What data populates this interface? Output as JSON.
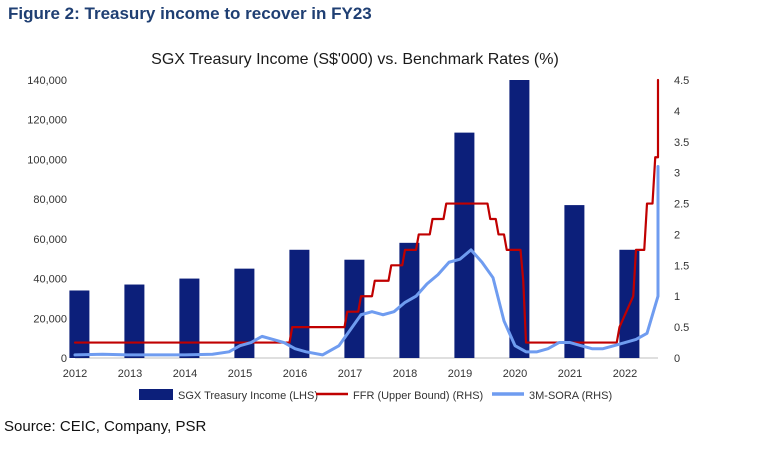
{
  "figure_title": "Figure 2: Treasury income to recover in FY23",
  "source_note": "Source: CEIC, Company, PSR",
  "colors": {
    "bars": "#0c1f7a",
    "ffr": "#c00000",
    "sora": "#6f9cf0",
    "title": "#1f3f73"
  },
  "chart_data": {
    "type": "bar+line",
    "title": "SGX Treasury Income (S$'000) vs. Benchmark Rates (%)",
    "x_tick_labels": [
      "2012",
      "2013",
      "2014",
      "2015",
      "2016",
      "2017",
      "2018",
      "2019",
      "2020",
      "2021",
      "2022"
    ],
    "x_range": [
      2012,
      2022.6
    ],
    "y_left": {
      "range": [
        0,
        140000
      ],
      "ticks": [
        "0",
        "20,000",
        "40,000",
        "60,000",
        "80,000",
        "100,000",
        "120,000",
        "140,000"
      ]
    },
    "y_right": {
      "range": [
        0,
        4.5
      ],
      "ticks": [
        "0",
        "0.5",
        "1",
        "1.5",
        "2",
        "2.5",
        "3",
        "3.5",
        "4",
        "4.5"
      ]
    },
    "bar_series": {
      "name": "SGX Treasury Income (LHS)",
      "axis": "left",
      "x": [
        2012,
        2013,
        2014,
        2015,
        2016,
        2017,
        2018,
        2019,
        2020,
        2021,
        2022
      ],
      "values": [
        34000,
        37000,
        40000,
        45000,
        54500,
        49500,
        58000,
        113500,
        140000,
        77000,
        54500
      ]
    },
    "line_series": [
      {
        "name": "FFR (Upper Bound) (RHS)",
        "axis": "right",
        "color": "#c00000",
        "x": [
          2012,
          2015.9,
          2015.95,
          2016.9,
          2016.95,
          2017.15,
          2017.2,
          2017.4,
          2017.45,
          2017.7,
          2017.75,
          2017.95,
          2018.0,
          2018.2,
          2018.25,
          2018.45,
          2018.5,
          2018.7,
          2018.75,
          2018.95,
          2019.0,
          2019.5,
          2019.55,
          2019.65,
          2019.7,
          2019.8,
          2019.85,
          2020.1,
          2020.15,
          2020.2,
          2020.25,
          2021.85,
          2021.9,
          2022.15,
          2022.2,
          2022.35,
          2022.4,
          2022.5,
          2022.55,
          2022.65,
          2022.75,
          2022.85,
          2022.95
        ],
        "values": [
          0.25,
          0.25,
          0.5,
          0.5,
          0.75,
          0.75,
          1.0,
          1.0,
          1.25,
          1.25,
          1.5,
          1.5,
          1.75,
          1.75,
          2.0,
          2.0,
          2.25,
          2.25,
          2.5,
          2.5,
          2.5,
          2.5,
          2.25,
          2.25,
          2.0,
          2.0,
          1.75,
          1.75,
          1.25,
          0.25,
          0.25,
          0.25,
          0.5,
          1.0,
          1.75,
          1.75,
          2.5,
          2.5,
          3.25,
          3.25,
          4.0,
          4.25,
          4.5
        ]
      },
      {
        "name": "3M-SORA (RHS)",
        "axis": "right",
        "color": "#6f9cf0",
        "x": [
          2012,
          2012.5,
          2013,
          2013.5,
          2014,
          2014.5,
          2014.8,
          2015,
          2015.2,
          2015.4,
          2015.6,
          2015.8,
          2016,
          2016.2,
          2016.5,
          2016.8,
          2017,
          2017.2,
          2017.4,
          2017.6,
          2017.8,
          2018,
          2018.2,
          2018.4,
          2018.6,
          2018.8,
          2019,
          2019.2,
          2019.4,
          2019.6,
          2019.8,
          2020,
          2020.2,
          2020.4,
          2020.6,
          2020.8,
          2021,
          2021.2,
          2021.4,
          2021.6,
          2021.8,
          2022,
          2022.2,
          2022.4,
          2022.6,
          2022.8,
          2022.95
        ],
        "values": [
          0.05,
          0.06,
          0.05,
          0.05,
          0.05,
          0.06,
          0.1,
          0.2,
          0.25,
          0.35,
          0.3,
          0.25,
          0.15,
          0.1,
          0.05,
          0.2,
          0.45,
          0.7,
          0.75,
          0.7,
          0.75,
          0.9,
          1.0,
          1.2,
          1.35,
          1.55,
          1.6,
          1.75,
          1.55,
          1.3,
          0.6,
          0.2,
          0.1,
          0.1,
          0.15,
          0.25,
          0.25,
          0.2,
          0.15,
          0.15,
          0.2,
          0.25,
          0.3,
          0.4,
          1.0,
          2.0,
          3.1
        ]
      }
    ],
    "legend": [
      "SGX Treasury Income (LHS)",
      "FFR (Upper Bound) (RHS)",
      "3M-SORA (RHS)"
    ],
    "legend_position": "bottom",
    "grid": false
  }
}
